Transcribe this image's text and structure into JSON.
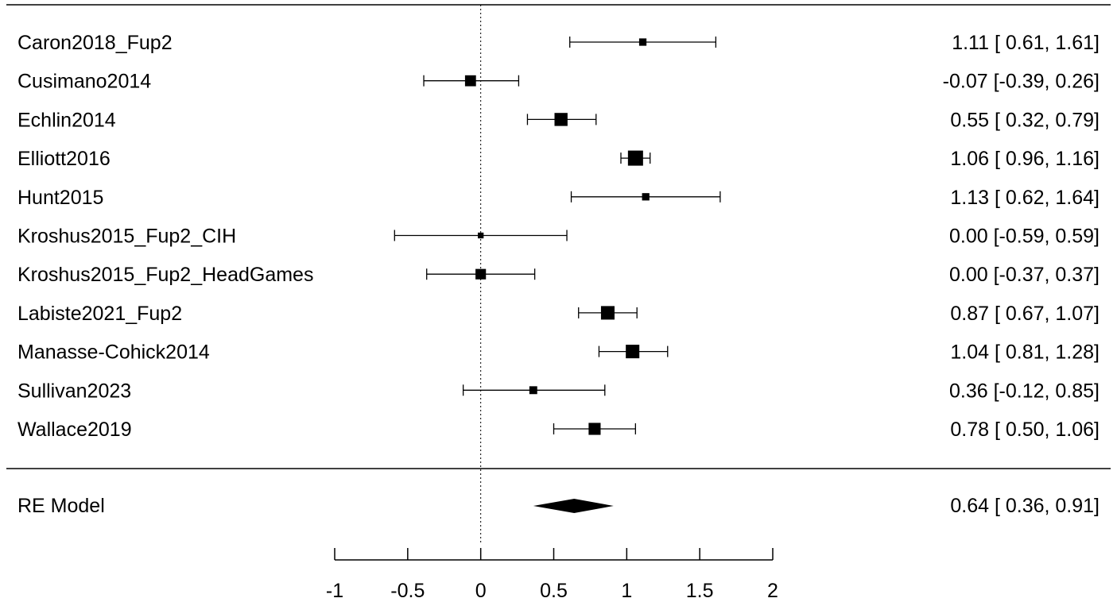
{
  "chart_data": {
    "type": "forest",
    "xlim": [
      -1,
      2
    ],
    "ticks": [
      -1,
      -0.5,
      0,
      0.5,
      1,
      1.5,
      2
    ],
    "tick_labels": [
      "-1",
      "-0.5",
      "0",
      "0.5",
      "1",
      "1.5",
      "2"
    ],
    "reference_line": 0,
    "studies": [
      {
        "label": "Caron2018_Fup2",
        "estimate": 1.11,
        "lower": 0.61,
        "upper": 1.61,
        "ci_text": "1.11 [ 0.61, 1.61]",
        "weight": 0.25
      },
      {
        "label": "Cusimano2014",
        "estimate": -0.07,
        "lower": -0.39,
        "upper": 0.26,
        "ci_text": "-0.07 [-0.39, 0.26]",
        "weight": 0.6
      },
      {
        "label": "Echlin2014",
        "estimate": 0.55,
        "lower": 0.32,
        "upper": 0.79,
        "ci_text": "0.55 [ 0.32, 0.79]",
        "weight": 0.8
      },
      {
        "label": "Elliott2016",
        "estimate": 1.06,
        "lower": 0.96,
        "upper": 1.16,
        "ci_text": "1.06 [ 0.96, 1.16]",
        "weight": 1.0
      },
      {
        "label": "Hunt2015",
        "estimate": 1.13,
        "lower": 0.62,
        "upper": 1.64,
        "ci_text": "1.13 [ 0.62, 1.64]",
        "weight": 0.25
      },
      {
        "label": "Kroshus2015_Fup2_CIH",
        "estimate": 0.0,
        "lower": -0.59,
        "upper": 0.59,
        "ci_text": "0.00 [-0.59, 0.59]",
        "weight": 0.1
      },
      {
        "label": "Kroshus2015_Fup2_HeadGames",
        "estimate": 0.0,
        "lower": -0.37,
        "upper": 0.37,
        "ci_text": "0.00 [-0.37, 0.37]",
        "weight": 0.55
      },
      {
        "label": "Labiste2021_Fup2",
        "estimate": 0.87,
        "lower": 0.67,
        "upper": 1.07,
        "ci_text": "0.87 [ 0.67, 1.07]",
        "weight": 0.85
      },
      {
        "label": "Manasse-Cohick2014",
        "estimate": 1.04,
        "lower": 0.81,
        "upper": 1.28,
        "ci_text": "1.04 [ 0.81, 1.28]",
        "weight": 0.85
      },
      {
        "label": "Sullivan2023",
        "estimate": 0.36,
        "lower": -0.12,
        "upper": 0.85,
        "ci_text": "0.36 [-0.12, 0.85]",
        "weight": 0.3
      },
      {
        "label": "Wallace2019",
        "estimate": 0.78,
        "lower": 0.5,
        "upper": 1.06,
        "ci_text": "0.78 [ 0.50, 1.06]",
        "weight": 0.7
      }
    ],
    "summary": {
      "label": "RE Model",
      "estimate": 0.64,
      "lower": 0.36,
      "upper": 0.91,
      "ci_text": "0.64 [ 0.36, 0.91]"
    }
  }
}
